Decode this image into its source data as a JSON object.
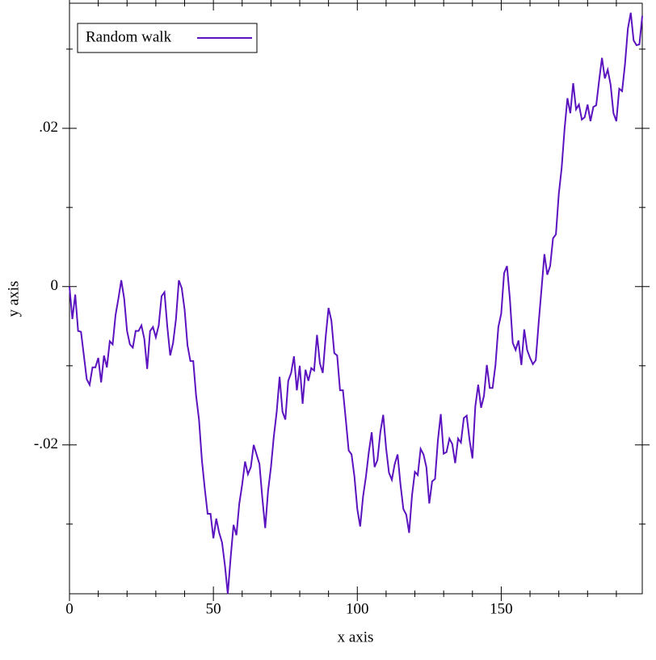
{
  "chart_data": {
    "type": "line",
    "x_label": "x axis",
    "y_label": "y axis",
    "xlim": [
      0,
      199
    ],
    "ylim": [
      -0.0388,
      0.0358
    ],
    "xticks": [
      0,
      50,
      100,
      150
    ],
    "x_minor_ticks": [
      10,
      20,
      30,
      40,
      60,
      70,
      80,
      90,
      110,
      120,
      130,
      140,
      160,
      170,
      180,
      190
    ],
    "yticks": [
      {
        "value": -0.02,
        "label": "-.02"
      },
      0,
      {
        "value": 0.02,
        "label": ".02"
      }
    ],
    "y_minor_ticks": [
      -0.03,
      -0.01,
      0.01,
      0.03
    ],
    "legend": "top-left",
    "x": [
      0,
      1,
      2,
      3,
      4,
      5,
      6,
      7,
      8,
      9,
      10,
      11,
      12,
      13,
      14,
      15,
      16,
      17,
      18,
      19,
      20,
      21,
      22,
      23,
      24,
      25,
      26,
      27,
      28,
      29,
      30,
      31,
      32,
      33,
      34,
      35,
      36,
      37,
      38,
      39,
      40,
      41,
      42,
      43,
      44,
      45,
      46,
      47,
      48,
      49,
      50,
      51,
      52,
      53,
      54,
      55,
      56,
      57,
      58,
      59,
      60,
      61,
      62,
      63,
      64,
      65,
      66,
      67,
      68,
      69,
      70,
      71,
      72,
      73,
      74,
      75,
      76,
      77,
      78,
      79,
      80,
      81,
      82,
      83,
      84,
      85,
      86,
      87,
      88,
      89,
      90,
      91,
      92,
      93,
      94,
      95,
      96,
      97,
      98,
      99,
      100,
      101,
      102,
      103,
      104,
      105,
      106,
      107,
      108,
      109,
      110,
      111,
      112,
      113,
      114,
      115,
      116,
      117,
      118,
      119,
      120,
      121,
      122,
      123,
      124,
      125,
      126,
      127,
      128,
      129,
      130,
      131,
      132,
      133,
      134,
      135,
      136,
      137,
      138,
      139,
      140,
      141,
      142,
      143,
      144,
      145,
      146,
      147,
      148,
      149,
      150,
      151,
      152,
      153,
      154,
      155,
      156,
      157,
      158,
      159,
      160,
      161,
      162,
      163,
      164,
      165,
      166,
      167,
      168,
      169,
      170,
      171,
      172,
      173,
      174,
      175,
      176,
      177,
      178,
      179,
      180,
      181,
      182,
      183,
      184,
      185,
      186,
      187,
      188,
      189,
      190,
      191,
      192,
      193,
      194,
      195,
      196,
      197,
      198,
      199
    ],
    "series": [
      {
        "name": "Random walk",
        "color": "#5b13c0",
        "values": [
          0,
          -0.0041,
          -0.001,
          -0.0056,
          -0.0057,
          -0.0087,
          -0.0117,
          -0.0124,
          -0.0102,
          -0.0102,
          -0.009,
          -0.0121,
          -0.0087,
          -0.0102,
          -0.0069,
          -0.0073,
          -0.0036,
          -0.0015,
          0.0008,
          -0.0015,
          -0.0056,
          -0.0073,
          -0.0077,
          -0.0056,
          -0.0056,
          -0.0049,
          -0.0066,
          -0.0104,
          -0.0056,
          -0.0051,
          -0.0064,
          -0.0049,
          -0.0012,
          -0.0007,
          -0.0051,
          -0.0087,
          -0.0071,
          -0.0041,
          0.0008,
          -0.0002,
          -0.0029,
          -0.0074,
          -0.0094,
          -0.0094,
          -0.0138,
          -0.0168,
          -0.0219,
          -0.0255,
          -0.0287,
          -0.0287,
          -0.0318,
          -0.0293,
          -0.0311,
          -0.0323,
          -0.0352,
          -0.0388,
          -0.0342,
          -0.0301,
          -0.0314,
          -0.0274,
          -0.025,
          -0.0221,
          -0.0237,
          -0.0228,
          -0.02,
          -0.0212,
          -0.0224,
          -0.0267,
          -0.0305,
          -0.0258,
          -0.0228,
          -0.0189,
          -0.0158,
          -0.0114,
          -0.0158,
          -0.0168,
          -0.0119,
          -0.0109,
          -0.0088,
          -0.0131,
          -0.01,
          -0.0148,
          -0.0105,
          -0.0119,
          -0.0103,
          -0.0106,
          -0.0061,
          -0.0097,
          -0.0109,
          -0.0064,
          -0.0027,
          -0.0043,
          -0.0084,
          -0.0087,
          -0.0131,
          -0.0131,
          -0.0168,
          -0.0207,
          -0.0212,
          -0.024,
          -0.0281,
          -0.0303,
          -0.0265,
          -0.024,
          -0.0209,
          -0.0184,
          -0.0228,
          -0.0219,
          -0.0184,
          -0.0162,
          -0.0204,
          -0.0235,
          -0.0244,
          -0.0224,
          -0.0212,
          -0.025,
          -0.0281,
          -0.0288,
          -0.0311,
          -0.0264,
          -0.0234,
          -0.0238,
          -0.0205,
          -0.0212,
          -0.0228,
          -0.0274,
          -0.0246,
          -0.0243,
          -0.0194,
          -0.0161,
          -0.0211,
          -0.0209,
          -0.0192,
          -0.0199,
          -0.0223,
          -0.0192,
          -0.0197,
          -0.0166,
          -0.0163,
          -0.0194,
          -0.0217,
          -0.0151,
          -0.0124,
          -0.0153,
          -0.0138,
          -0.0099,
          -0.0128,
          -0.0128,
          -0.0099,
          -0.0051,
          -0.0034,
          0.0017,
          0.0026,
          -0.0015,
          -0.0071,
          -0.008,
          -0.0068,
          -0.0099,
          -0.0054,
          -0.008,
          -0.009,
          -0.0098,
          -0.0093,
          -0.0046,
          -0.0003,
          0.0041,
          0.0015,
          0.0026,
          0.0061,
          0.0066,
          0.0117,
          0.015,
          0.0199,
          0.0238,
          0.0219,
          0.0257,
          0.0224,
          0.023,
          0.0211,
          0.0214,
          0.023,
          0.0209,
          0.0227,
          0.0229,
          0.026,
          0.0289,
          0.0263,
          0.0274,
          0.0255,
          0.0219,
          0.0209,
          0.025,
          0.0247,
          0.0281,
          0.0326,
          0.0346,
          0.0311,
          0.0305,
          0.0306,
          0.0342
        ]
      }
    ]
  }
}
